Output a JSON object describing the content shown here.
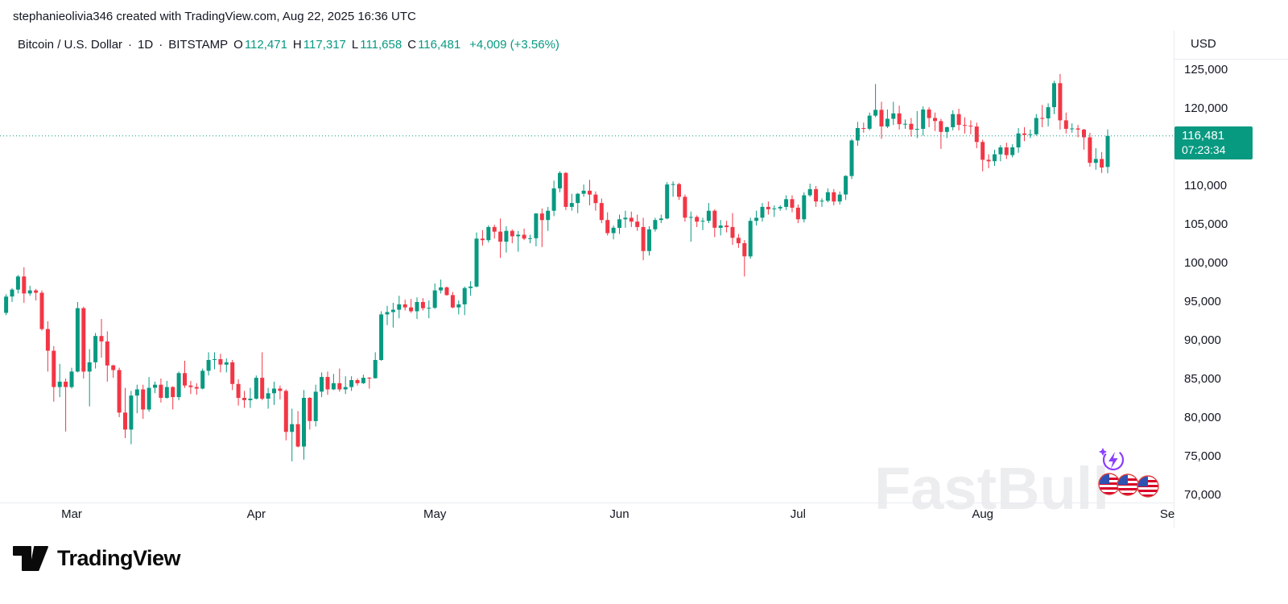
{
  "attribution": {
    "text": "stephanieolivia346 created with TradingView.com, Aug 22, 2025 16:36 UTC"
  },
  "header": {
    "symbol": "Bitcoin / U.S. Dollar",
    "dot": "·",
    "interval": "1D",
    "exchange": "BITSTAMP",
    "o_label": "O",
    "o": "112,471",
    "h_label": "H",
    "h": "117,317",
    "l_label": "L",
    "l": "111,658",
    "c_label": "C",
    "c": "116,481",
    "change": "+4,009 (+3.56%)"
  },
  "price_scale": {
    "currency_label": "USD"
  },
  "badge": {
    "price": "116,481",
    "countdown": "07:23:34"
  },
  "watermark": {
    "text": "FastBull"
  },
  "footer": {
    "logo_text": "TradingView"
  },
  "chart_data": {
    "type": "candlestick",
    "title": "Bitcoin / U.S. Dollar",
    "interval": "1D",
    "exchange": "BITSTAMP",
    "current": {
      "open": 112471,
      "high": 117317,
      "low": 111658,
      "close": 116481,
      "change_abs": "+4,009",
      "change_pct": "+3.56%"
    },
    "last_price": 116481,
    "colors": {
      "up": "#089981",
      "down": "#f23645"
    },
    "grid": false,
    "legend_position": "none",
    "y_axis": {
      "currency": "USD",
      "min": 68000,
      "max": 126500,
      "ticks": [
        {
          "value": 125000,
          "label": "125,000"
        },
        {
          "value": 120000,
          "label": "120,000"
        },
        {
          "value": 115000,
          "label": "115,000"
        },
        {
          "value": 110000,
          "label": "110,000"
        },
        {
          "value": 105000,
          "label": "105,000"
        },
        {
          "value": 100000,
          "label": "100,000"
        },
        {
          "value": 95000,
          "label": "95,000"
        },
        {
          "value": 90000,
          "label": "90,000"
        },
        {
          "value": 85000,
          "label": "85,000"
        },
        {
          "value": 80000,
          "label": "80,000"
        },
        {
          "value": 75000,
          "label": "75,000"
        },
        {
          "value": 70000,
          "label": "70,000"
        }
      ]
    },
    "x_axis": {
      "start_date": "2025-02-18",
      "labels": [
        {
          "text": "Mar",
          "day_index": 11
        },
        {
          "text": "Apr",
          "day_index": 42
        },
        {
          "text": "May",
          "day_index": 72
        },
        {
          "text": "Jun",
          "day_index": 103
        },
        {
          "text": "Jul",
          "day_index": 133
        },
        {
          "text": "Aug",
          "day_index": 164
        },
        {
          "text": "Se",
          "day_index": 195
        }
      ]
    },
    "candles": [
      [
        93600,
        96000,
        93300,
        95700
      ],
      [
        95700,
        96800,
        95000,
        96600
      ],
      [
        96600,
        98500,
        96100,
        98300
      ],
      [
        98300,
        99500,
        94900,
        96100
      ],
      [
        96100,
        97100,
        95800,
        96500
      ],
      [
        96500,
        96700,
        95200,
        96200
      ],
      [
        96200,
        96500,
        91300,
        91500
      ],
      [
        91500,
        92500,
        86000,
        88700
      ],
      [
        88700,
        89300,
        82100,
        84000
      ],
      [
        84000,
        87000,
        82700,
        84700
      ],
      [
        84700,
        85100,
        78250,
        84000
      ],
      [
        84000,
        86500,
        83800,
        86000
      ],
      [
        86000,
        95000,
        85900,
        94200
      ],
      [
        94200,
        94400,
        85100,
        86000
      ],
      [
        86000,
        88900,
        81500,
        87200
      ],
      [
        87200,
        91000,
        86400,
        90600
      ],
      [
        90600,
        92800,
        87800,
        89900
      ],
      [
        89900,
        91200,
        84700,
        86800
      ],
      [
        86800,
        86900,
        85200,
        86200
      ],
      [
        86200,
        86500,
        80100,
        80700
      ],
      [
        80700,
        83900,
        77400,
        78500
      ],
      [
        78500,
        83500,
        76600,
        82900
      ],
      [
        82900,
        84300,
        80600,
        83700
      ],
      [
        83700,
        84300,
        79900,
        81100
      ],
      [
        81100,
        85300,
        80800,
        83900
      ],
      [
        83900,
        84700,
        83200,
        84300
      ],
      [
        84300,
        85100,
        82000,
        82600
      ],
      [
        82600,
        84800,
        82500,
        84000
      ],
      [
        84000,
        84100,
        81100,
        82700
      ],
      [
        82700,
        86000,
        82300,
        85800
      ],
      [
        85800,
        87400,
        83900,
        84200
      ],
      [
        84200,
        84800,
        83100,
        84000
      ],
      [
        84000,
        84500,
        83000,
        83800
      ],
      [
        83800,
        86400,
        83700,
        86100
      ],
      [
        86100,
        88500,
        85500,
        87500
      ],
      [
        87500,
        88500,
        86300,
        87600
      ],
      [
        87600,
        88300,
        85900,
        86900
      ],
      [
        86900,
        87700,
        85900,
        87200
      ],
      [
        87200,
        87500,
        83600,
        84400
      ],
      [
        84400,
        85000,
        81600,
        82600
      ],
      [
        82600,
        83500,
        81300,
        82300
      ],
      [
        82300,
        83900,
        81300,
        82500
      ],
      [
        82500,
        85500,
        82400,
        85200
      ],
      [
        85200,
        88500,
        82300,
        82500
      ],
      [
        82500,
        83900,
        81200,
        83200
      ],
      [
        83200,
        84700,
        81700,
        83800
      ],
      [
        83800,
        84200,
        82400,
        83500
      ],
      [
        83500,
        83700,
        77100,
        78200
      ],
      [
        78200,
        81200,
        74400,
        79200
      ],
      [
        79200,
        80900,
        76200,
        76300
      ],
      [
        76300,
        83600,
        74600,
        82600
      ],
      [
        82600,
        82700,
        78500,
        79600
      ],
      [
        79600,
        84300,
        78900,
        83400
      ],
      [
        83400,
        85900,
        82700,
        85300
      ],
      [
        85300,
        86000,
        83000,
        83700
      ],
      [
        83700,
        85700,
        83600,
        84500
      ],
      [
        84500,
        86400,
        83400,
        83700
      ],
      [
        83700,
        85400,
        83100,
        84000
      ],
      [
        84000,
        85400,
        83500,
        84900
      ],
      [
        84900,
        85100,
        84200,
        84500
      ],
      [
        84500,
        85600,
        84400,
        85200
      ],
      [
        85200,
        85300,
        83800,
        85150
      ],
      [
        85150,
        88500,
        85100,
        87500
      ],
      [
        87500,
        93800,
        87400,
        93400
      ],
      [
        93400,
        94500,
        92000,
        93700
      ],
      [
        93700,
        94900,
        91700,
        94000
      ],
      [
        94000,
        95800,
        92900,
        94700
      ],
      [
        94700,
        95300,
        93900,
        94300
      ],
      [
        94300,
        95400,
        93600,
        93800
      ],
      [
        93800,
        95600,
        92800,
        95000
      ],
      [
        95000,
        95500,
        93900,
        94200
      ],
      [
        94200,
        95200,
        92900,
        94250
      ],
      [
        94250,
        97400,
        94100,
        96500
      ],
      [
        96500,
        97900,
        96100,
        96900
      ],
      [
        96900,
        97000,
        95800,
        95900
      ],
      [
        95900,
        96300,
        94200,
        94300
      ],
      [
        94300,
        95200,
        93400,
        94700
      ],
      [
        94700,
        97000,
        93300,
        96800
      ],
      [
        96800,
        97700,
        95800,
        97000
      ],
      [
        97000,
        104000,
        96900,
        103200
      ],
      [
        103200,
        104300,
        102300,
        103000
      ],
      [
        103000,
        104900,
        102700,
        104700
      ],
      [
        104700,
        105000,
        103200,
        104100
      ],
      [
        104100,
        105800,
        100700,
        102800
      ],
      [
        102800,
        104800,
        101400,
        104200
      ],
      [
        104200,
        104400,
        102600,
        103500
      ],
      [
        103500,
        104200,
        101500,
        103700
      ],
      [
        103700,
        104500,
        103000,
        103200
      ],
      [
        103200,
        103700,
        102600,
        103250
      ],
      [
        103250,
        106500,
        102200,
        106450
      ],
      [
        106450,
        107100,
        102100,
        105600
      ],
      [
        105600,
        107300,
        104200,
        106800
      ],
      [
        106800,
        110700,
        106100,
        109700
      ],
      [
        109700,
        111900,
        109200,
        111700
      ],
      [
        111700,
        111800,
        106900,
        107300
      ],
      [
        107300,
        109000,
        106800,
        107800
      ],
      [
        107800,
        109100,
        106500,
        109000
      ],
      [
        109000,
        110200,
        108600,
        109400
      ],
      [
        109400,
        110800,
        107500,
        108900
      ],
      [
        108900,
        109300,
        106800,
        107800
      ],
      [
        107800,
        108400,
        105200,
        105600
      ],
      [
        105600,
        106600,
        103600,
        103900
      ],
      [
        103900,
        104900,
        103100,
        104600
      ],
      [
        104600,
        106300,
        103800,
        105700
      ],
      [
        105700,
        106800,
        104600,
        105900
      ],
      [
        105900,
        106700,
        104700,
        105400
      ],
      [
        105400,
        106300,
        104200,
        104700
      ],
      [
        104700,
        105900,
        100400,
        101600
      ],
      [
        101600,
        104800,
        101000,
        104400
      ],
      [
        104400,
        105900,
        104100,
        105600
      ],
      [
        105600,
        106300,
        105200,
        105800
      ],
      [
        105800,
        110500,
        105700,
        110200
      ],
      [
        110200,
        110600,
        108600,
        110250
      ],
      [
        110250,
        110400,
        108200,
        108600
      ],
      [
        108600,
        108900,
        105400,
        105900
      ],
      [
        105900,
        106700,
        102800,
        106000
      ],
      [
        106000,
        106200,
        104700,
        105400
      ],
      [
        105400,
        105900,
        104300,
        105500
      ],
      [
        105500,
        107800,
        105200,
        106800
      ],
      [
        106800,
        107000,
        103400,
        104600
      ],
      [
        104600,
        105600,
        103600,
        104900
      ],
      [
        104900,
        105500,
        104000,
        104700
      ],
      [
        104700,
        106500,
        102400,
        103300
      ],
      [
        103300,
        103800,
        102000,
        102600
      ],
      [
        102600,
        103000,
        98300,
        100900
      ],
      [
        100900,
        105900,
        100600,
        105500
      ],
      [
        105500,
        106800,
        104900,
        105900
      ],
      [
        105900,
        107800,
        105400,
        107300
      ],
      [
        107300,
        108000,
        106300,
        107000
      ],
      [
        107000,
        107500,
        106000,
        107100
      ],
      [
        107100,
        107500,
        106800,
        107300
      ],
      [
        107300,
        108800,
        106900,
        108300
      ],
      [
        108300,
        108800,
        106600,
        107200
      ],
      [
        107200,
        107600,
        105200,
        105700
      ],
      [
        105700,
        109200,
        105300,
        108800
      ],
      [
        108800,
        110300,
        108600,
        109600
      ],
      [
        109600,
        110000,
        107300,
        108000
      ],
      [
        108000,
        108400,
        107300,
        108100
      ],
      [
        108100,
        109700,
        107900,
        109200
      ],
      [
        109200,
        109600,
        107500,
        108000
      ],
      [
        108000,
        109300,
        107600,
        108900
      ],
      [
        108900,
        111400,
        108200,
        111300
      ],
      [
        111300,
        116100,
        110900,
        115900
      ],
      [
        115900,
        118300,
        115200,
        117500
      ],
      [
        117500,
        118200,
        116900,
        117400
      ],
      [
        117400,
        119500,
        117200,
        119100
      ],
      [
        119100,
        123200,
        118900,
        119850
      ],
      [
        119850,
        120900,
        116100,
        117700
      ],
      [
        117700,
        119900,
        117500,
        118700
      ],
      [
        118700,
        120900,
        117900,
        119400
      ],
      [
        119400,
        120400,
        117300,
        118000
      ],
      [
        118000,
        118600,
        117400,
        118050
      ],
      [
        118050,
        118800,
        116400,
        117300
      ],
      [
        117300,
        119700,
        116200,
        117400
      ],
      [
        117400,
        120300,
        116500,
        119900
      ],
      [
        119900,
        120200,
        117600,
        118800
      ],
      [
        118800,
        119500,
        117100,
        118400
      ],
      [
        118400,
        118700,
        114800,
        117000
      ],
      [
        117000,
        117700,
        116200,
        117600
      ],
      [
        117600,
        119800,
        117200,
        119300
      ],
      [
        119300,
        120000,
        117200,
        117900
      ],
      [
        117900,
        118900,
        116800,
        117800
      ],
      [
        117800,
        118500,
        116700,
        117700
      ],
      [
        117700,
        118200,
        114900,
        115700
      ],
      [
        115700,
        116000,
        111900,
        113400
      ],
      [
        113400,
        114100,
        112300,
        113200
      ],
      [
        113200,
        114700,
        112600,
        114100
      ],
      [
        114100,
        115300,
        113200,
        115000
      ],
      [
        115000,
        115600,
        113500,
        114000
      ],
      [
        114000,
        115400,
        113700,
        115000
      ],
      [
        115000,
        117500,
        114300,
        116800
      ],
      [
        116800,
        117600,
        115800,
        116600
      ],
      [
        116600,
        117300,
        116200,
        116700
      ],
      [
        116700,
        119300,
        116500,
        118800
      ],
      [
        118800,
        120500,
        117600,
        118750
      ],
      [
        118750,
        120700,
        117700,
        120200
      ],
      [
        120200,
        123600,
        119300,
        123300
      ],
      [
        123300,
        124500,
        117300,
        118500
      ],
      [
        118500,
        119500,
        116800,
        117400
      ],
      [
        117400,
        118100,
        116900,
        117450
      ],
      [
        117450,
        117900,
        116300,
        117300
      ],
      [
        117300,
        117400,
        114700,
        116300
      ],
      [
        116300,
        116900,
        112500,
        113000
      ],
      [
        113000,
        114900,
        112100,
        113500
      ],
      [
        113500,
        114400,
        111700,
        112400
      ],
      [
        112471,
        117317,
        111658,
        116481
      ]
    ]
  }
}
